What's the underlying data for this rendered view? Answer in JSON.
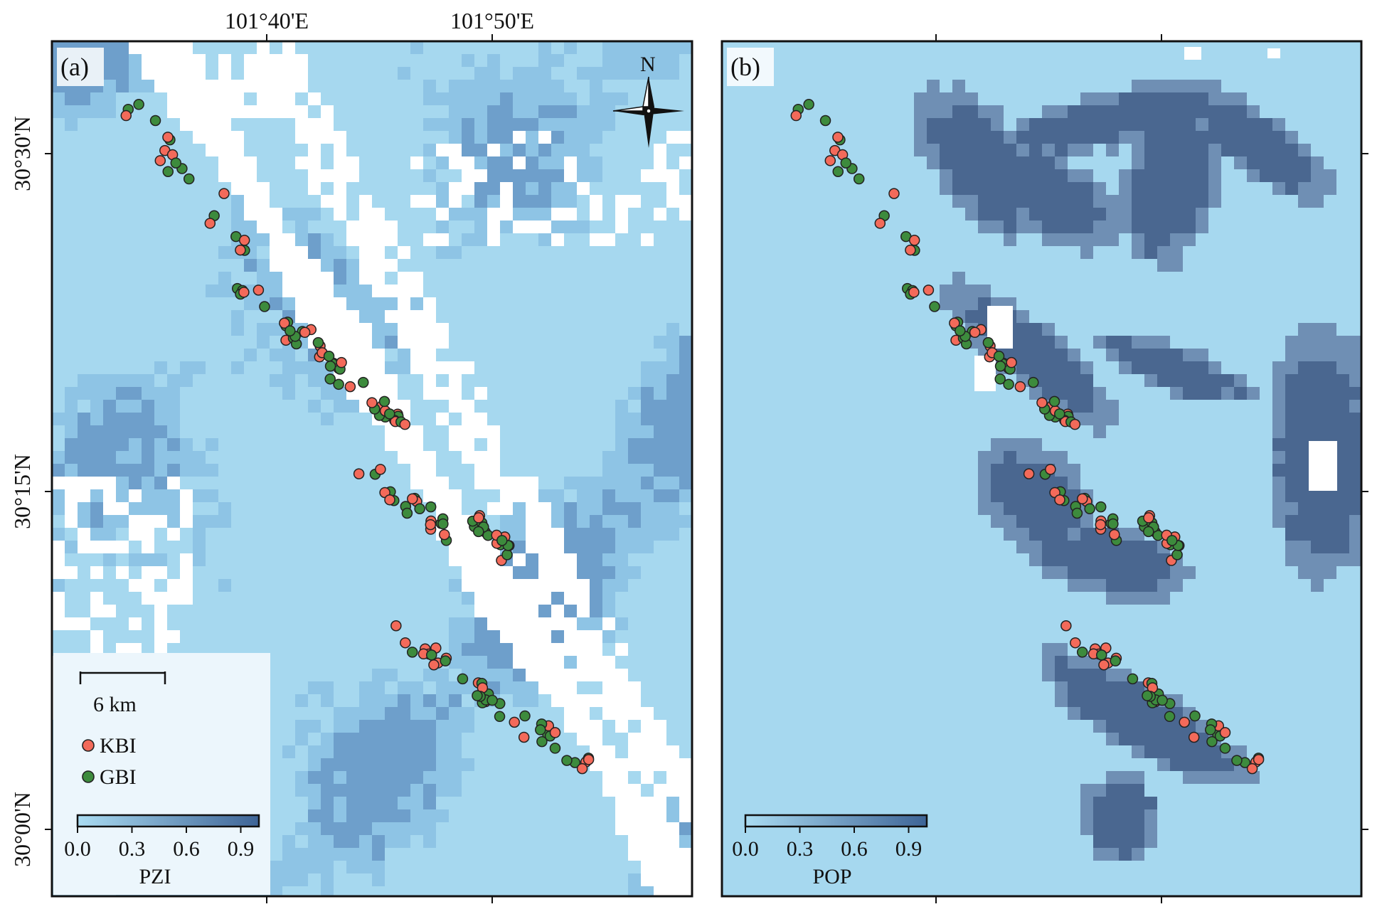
{
  "colors": {
    "water_light": "#a6d8ef",
    "pzi_mid": "#8ec4e5",
    "pzi_dark": "#6e9fcb",
    "pop_dark": "#4a6790",
    "pop_mid": "#6f8fb4",
    "white": "#ffffff",
    "kbi": "#f36a5a",
    "gbi": "#3d8b3d",
    "marker_edge": "#222222",
    "frame": "#111111"
  },
  "axes": {
    "top_lon_labels": [
      "101°40'E",
      "101°50'E"
    ],
    "left_lat_labels": [
      "30°30'N",
      "30°15'N",
      "30°00'N"
    ]
  },
  "panel_a": {
    "label": "(a)",
    "north_label": "N",
    "scalebar_label": "6 km",
    "legend": [
      {
        "name": "KBI",
        "color_key": "kbi"
      },
      {
        "name": "GBI",
        "color_key": "gbi"
      }
    ],
    "colorbar": {
      "title": "PZI",
      "ticks": [
        "0.0",
        "0.3",
        "0.6",
        "0.9"
      ],
      "range": [
        0,
        1
      ],
      "colors": [
        "#aadcf2",
        "#3e6496"
      ]
    }
  },
  "panel_b": {
    "label": "(b)",
    "colorbar": {
      "title": "POP",
      "ticks": [
        "0.0",
        "0.3",
        "0.6",
        "0.9"
      ],
      "range": [
        0,
        1
      ],
      "colors": [
        "#aadcf2",
        "#3e6496"
      ]
    }
  }
}
